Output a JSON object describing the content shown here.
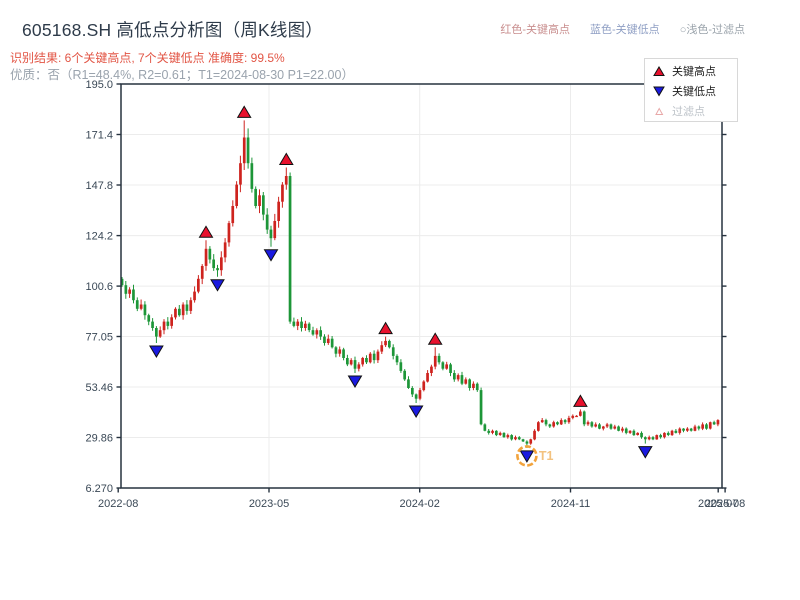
{
  "header": {
    "title": "605168.SH 高低点分析图（周K线图）",
    "result_line": "识别结果: 6个关键高点, 7个关键低点  准确度: 99.5%",
    "quality_line": "优质：否（R1=48.4%, R2=0.61；T1=2024-08-30 P1=22.00）",
    "legend": [
      {
        "label": "红色-关键高点",
        "color": "#c98f8f"
      },
      {
        "label": "蓝色-关键低点",
        "color": "#8f9fc4"
      },
      {
        "label": "○浅色-过滤点",
        "color": "#9aa3ab"
      }
    ]
  },
  "chart": {
    "legend": [
      {
        "label": "关键高点",
        "marker": "triangle-up",
        "color": "#e8112d",
        "text_color": "#1c1c1c"
      },
      {
        "label": "关键低点",
        "marker": "triangle-down",
        "color": "#1a1ae0",
        "text_color": "#1c1c1c"
      },
      {
        "label": "过滤点",
        "marker": "triangle-up-outline",
        "color": "#e8a8a8",
        "text_color": "#bcc2c8"
      }
    ]
  },
  "chart_data": {
    "type": "candlestick",
    "period": "weekly",
    "title": "605168.SH 高低点分析图（周K线图）",
    "ylim": [
      6.27,
      195.0
    ],
    "y_ticks": [
      {
        "value": 195.0,
        "label": "195.0"
      },
      {
        "value": 171.4,
        "label": "171.4"
      },
      {
        "value": 147.8,
        "label": "147.8"
      },
      {
        "value": 124.2,
        "label": "124.2"
      },
      {
        "value": 100.6,
        "label": "100.6"
      },
      {
        "value": 77.05,
        "label": "77.05"
      },
      {
        "value": 53.46,
        "label": "53.46"
      },
      {
        "value": 29.86,
        "label": "29.86"
      },
      {
        "value": 6.27,
        "label": "6.270"
      }
    ],
    "x_ticks": [
      {
        "week": -1.0,
        "label": "2022-08"
      },
      {
        "week": 38.2,
        "label": "2023-05"
      },
      {
        "week": 77.4,
        "label": "2024-02"
      },
      {
        "week": 116.6,
        "label": "2024-11"
      },
      {
        "week": 155.0,
        "label": "2025-07"
      },
      {
        "week": 156.8,
        "label": "2025-08"
      }
    ],
    "first_open": 104,
    "weekly_closes": [
      101,
      97,
      99,
      94,
      90,
      92,
      87,
      84,
      81,
      77,
      80,
      84,
      82,
      86,
      90,
      87,
      92,
      89,
      94,
      98,
      104,
      110,
      118,
      113,
      109,
      108,
      114,
      121,
      130,
      138,
      148,
      158,
      170,
      158,
      146,
      138,
      143,
      134,
      127,
      123,
      131,
      140,
      148,
      152,
      84,
      82,
      84,
      81,
      83,
      80,
      78,
      80,
      77,
      74,
      76,
      72,
      69,
      71,
      67,
      64,
      66,
      62,
      64,
      67,
      65,
      69,
      66,
      70,
      73,
      75,
      72,
      68,
      65,
      61,
      57,
      53,
      50,
      48,
      52,
      56,
      60,
      63,
      68,
      65,
      62,
      64,
      60,
      57,
      59,
      55,
      57,
      53,
      55,
      52,
      36,
      33,
      32,
      33,
      31,
      32,
      30,
      31,
      29,
      30,
      29,
      28,
      27,
      29,
      33,
      37,
      38,
      36,
      35,
      37,
      36,
      38,
      37,
      39,
      40,
      40,
      42,
      36,
      37,
      35,
      36,
      34,
      35,
      36,
      34,
      35,
      33,
      34,
      32,
      33,
      31,
      32,
      30,
      29,
      30,
      29,
      31,
      30,
      32,
      31,
      33,
      32,
      34,
      33,
      34,
      33,
      35,
      34,
      36,
      34,
      37,
      36,
      38
    ],
    "key_highs": [
      {
        "week": 22,
        "price": 122
      },
      {
        "week": 32,
        "price": 178
      },
      {
        "week": 43,
        "price": 156
      },
      {
        "week": 69,
        "price": 77
      },
      {
        "week": 82,
        "price": 72
      },
      {
        "week": 120,
        "price": 43
      }
    ],
    "key_lows": [
      {
        "week": 9,
        "price": 74
      },
      {
        "week": 25,
        "price": 105
      },
      {
        "week": 39,
        "price": 119
      },
      {
        "week": 61,
        "price": 60
      },
      {
        "week": 77,
        "price": 46
      },
      {
        "week": 106,
        "price": 25
      },
      {
        "week": 137,
        "price": 27
      }
    ],
    "highlight": {
      "week": 106,
      "label": "T1",
      "date": "2024-08-30",
      "price": 22.0
    },
    "colors": {
      "up": "#ce231e",
      "down": "#1d9638",
      "key_high": "#e8112d",
      "key_low": "#1a1ae0",
      "filtered": "#e8a8a8",
      "highlight": "#f2a33c",
      "highlight_label": "#f3c27f",
      "grid": "#ececec",
      "axis": "#26323f",
      "tick_label": "#3a4856"
    }
  }
}
